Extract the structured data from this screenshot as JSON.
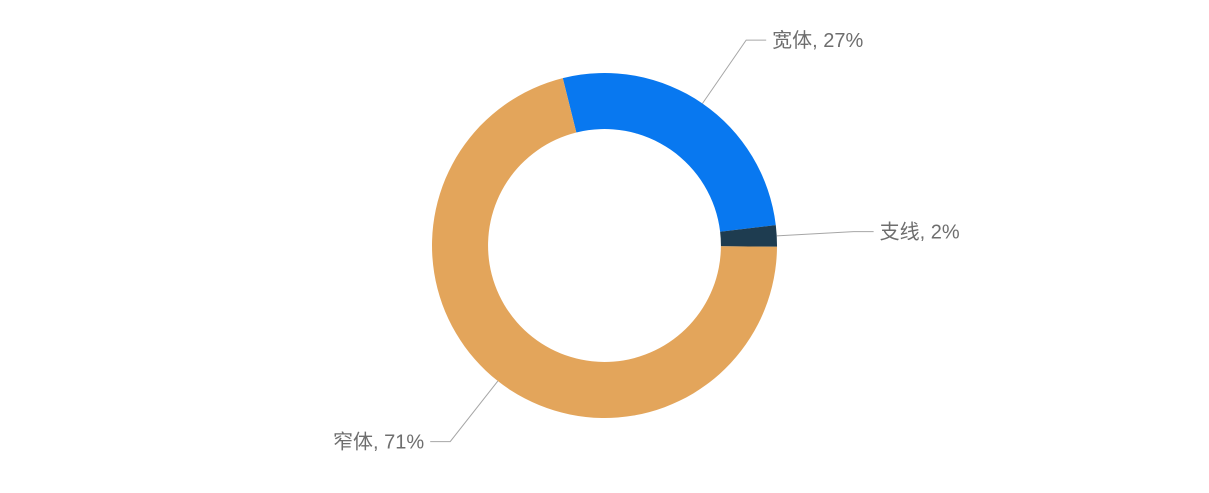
{
  "page": {
    "background_color": "#FFFFFF"
  },
  "chart_data": {
    "type": "pie",
    "subtype": "donut",
    "title": "",
    "legend": "none",
    "label_style": "outside-with-leader-lines",
    "direction": "clockwise",
    "start_angle_deg": -14,
    "donut_hole_ratio": 0.675,
    "categories": [
      "宽体",
      "支线",
      "窄体"
    ],
    "values": [
      27,
      2,
      71
    ],
    "slices": [
      {
        "name": "宽体",
        "value": 27,
        "label": "宽体, 27%",
        "color": "#0878F0"
      },
      {
        "name": "支线",
        "value": 2,
        "label": "支线, 2%",
        "color": "#1E3C50"
      },
      {
        "name": "窄体",
        "value": 71,
        "label": "窄体, 71%",
        "color": "#E3A55B"
      }
    ],
    "label_color": "#6E6E6E",
    "leader_line_color": "#A6A6A6",
    "background_color": "#FFFFFF"
  }
}
